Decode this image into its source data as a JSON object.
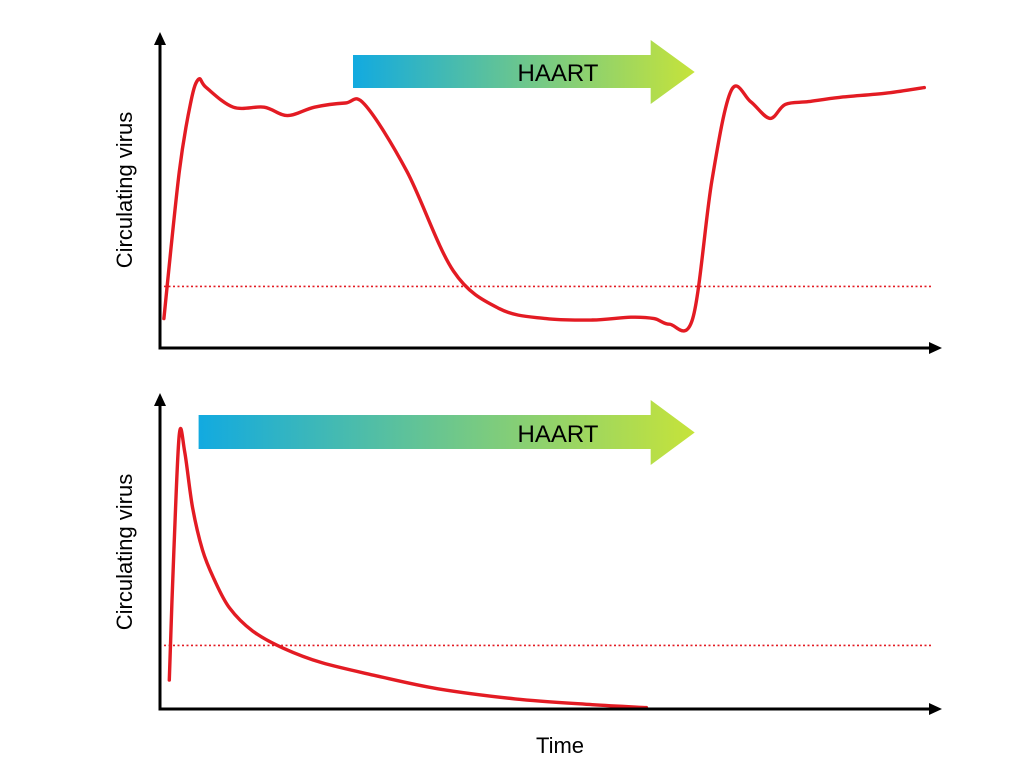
{
  "chart_data": [
    {
      "type": "line",
      "title": "",
      "xlabel": "",
      "ylabel": "Circulating virus",
      "xlim": [
        0,
        100
      ],
      "ylim": [
        0,
        100
      ],
      "grid": false,
      "annotations": [
        {
          "type": "arrow",
          "label": "HAART",
          "x_start": 25,
          "x_end": 69
        },
        {
          "type": "threshold-line",
          "style": "dotted",
          "y": 22
        }
      ],
      "series": [
        {
          "x": [
            0.5,
            2.5,
            4.0,
            5.0,
            6.0,
            9.5,
            13.5,
            16.5,
            20.0,
            24.0,
            26.5,
            32.0,
            38.0,
            44.0,
            50.0,
            56.0,
            61.0,
            64.0,
            66.0,
            69.0,
            71.5,
            74.0,
            76.5,
            79.0,
            81.0,
            84.0,
            88.0,
            94.0,
            99.0
          ],
          "y": [
            10.5,
            63.0,
            88.0,
            96.0,
            93.0,
            86.0,
            86.0,
            83.0,
            86.0,
            87.5,
            87.0,
            63.0,
            27.5,
            14.0,
            10.5,
            10.0,
            11.0,
            10.5,
            8.5,
            10.5,
            60.0,
            92.0,
            88.0,
            82.0,
            87.0,
            88.0,
            89.5,
            91.0,
            93.0
          ]
        }
      ]
    },
    {
      "type": "line",
      "title": "",
      "xlabel": "Time",
      "ylabel": "Circulating virus",
      "xlim": [
        0,
        100
      ],
      "ylim": [
        0,
        100
      ],
      "grid": false,
      "annotations": [
        {
          "type": "arrow",
          "label": "HAART",
          "x_start": 5,
          "x_end": 69
        },
        {
          "type": "threshold-line",
          "style": "dotted",
          "y": 22
        }
      ],
      "series": [
        {
          "x": [
            1.2,
            1.8,
            2.5,
            3.2,
            4.2,
            5.5,
            7.0,
            9.0,
            12.0,
            16.0,
            21.0,
            28.0,
            36.0,
            46.0,
            56.0,
            63.0
          ],
          "y": [
            10.0,
            55.0,
            95.0,
            89.0,
            70.0,
            55.0,
            45.0,
            35.0,
            27.0,
            21.0,
            16.0,
            11.5,
            7.0,
            3.5,
            1.5,
            0.5
          ]
        }
      ]
    }
  ],
  "colors": {
    "series": "#e31b23",
    "threshold": "#e31b23",
    "axis": "#000000",
    "arrow_start": "#12aae0",
    "arrow_end": "#c6e33a"
  }
}
